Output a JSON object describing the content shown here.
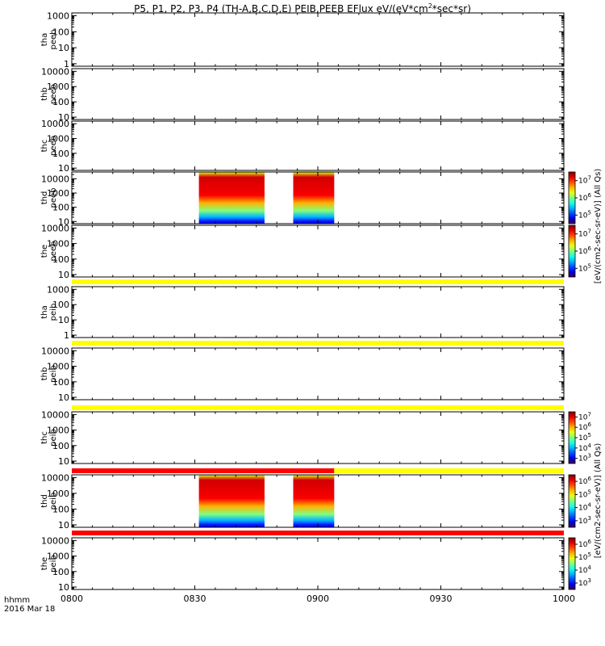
{
  "header": {
    "title_pre": "P5, P1, P2, P3, P4 (TH-A,B,C,D,E) PEIB,PEEB EFlux eV/(eV*cm",
    "title_sup": "2",
    "title_post": "*sec*sr)"
  },
  "footer": {
    "time_label": "hhmm",
    "date_label": "2016 Mar 18"
  },
  "colorbar_units": {
    "peeb": "[eV/(cm2-sec-sr-eV)] (All Qs)",
    "peib": "[eV/(cm2-sec-sr-eV)] (All Qs)"
  },
  "colors": {
    "yellow_bar": "#ffff00",
    "red_bar": "#ff0000"
  },
  "chart_data": {
    "type": "heatmap",
    "x_axis": {
      "range": [
        "08:00",
        "10:00"
      ],
      "tick_labels": [
        "0800",
        "0830",
        "0900",
        "0930",
        "1000"
      ]
    },
    "panels": [
      {
        "id": "tha-peeb",
        "ylabel": [
          "tha",
          "peeb"
        ],
        "ylim": [
          0.7,
          1500
        ],
        "yticks": [
          "1",
          "10",
          "100",
          "1000"
        ],
        "log": true,
        "data_intervals": []
      },
      {
        "id": "thb-peeb",
        "ylabel": [
          "thb",
          "peeb"
        ],
        "ylim": [
          7,
          15000
        ],
        "yticks": [
          "10",
          "100",
          "1000",
          "10000"
        ],
        "log": true,
        "data_intervals": []
      },
      {
        "id": "thc-peeb",
        "ylabel": [
          "thc",
          "peeb"
        ],
        "ylim": [
          7,
          15000
        ],
        "yticks": [
          "10",
          "100",
          "1000",
          "10000"
        ],
        "log": true,
        "data_intervals": []
      },
      {
        "id": "thd-peeb",
        "ylabel": [
          "thd",
          "peeb"
        ],
        "ylim": [
          7,
          30000
        ],
        "yticks": [
          "10",
          "100",
          "1000",
          "10000"
        ],
        "log": true,
        "data_intervals": [
          {
            "start": "08:31",
            "end": "08:47"
          },
          {
            "start": "08:54",
            "end": "09:04"
          }
        ],
        "colorbar": {
          "labels": [
            "10^7",
            "10^6",
            "10^5"
          ],
          "exponents": [
            7,
            6,
            5
          ],
          "range_exponent": [
            4.5,
            7.5
          ]
        }
      },
      {
        "id": "the-peeb",
        "ylabel": [
          "the",
          "peeb"
        ],
        "ylim": [
          7,
          15000
        ],
        "yticks": [
          "10",
          "100",
          "1000",
          "10000"
        ],
        "log": true,
        "data_intervals": [],
        "colorbar": {
          "labels": [
            "10^7",
            "10^6",
            "10^5"
          ],
          "exponents": [
            7,
            6,
            5
          ],
          "range_exponent": [
            4.5,
            7.5
          ]
        }
      },
      {
        "id": "tha-peib",
        "ylabel": [
          "tha",
          "peib"
        ],
        "ylim": [
          0.7,
          1500
        ],
        "yticks": [
          "1",
          "10",
          "100",
          "1000"
        ],
        "log": true,
        "data_intervals": []
      },
      {
        "id": "thb-peib",
        "ylabel": [
          "thb",
          "peib"
        ],
        "ylim": [
          7,
          15000
        ],
        "yticks": [
          "10",
          "100",
          "1000",
          "10000"
        ],
        "log": true,
        "data_intervals": []
      },
      {
        "id": "thc-peib",
        "ylabel": [
          "thc",
          "peib"
        ],
        "ylim": [
          7,
          15000
        ],
        "yticks": [
          "10",
          "100",
          "1000",
          "10000"
        ],
        "log": true,
        "data_intervals": [],
        "colorbar": {
          "labels": [
            "10^7",
            "10^6",
            "10^5",
            "10^4",
            "10^3"
          ],
          "exponents": [
            7,
            6,
            5,
            4,
            3
          ],
          "range_exponent": [
            2.5,
            7.5
          ]
        }
      },
      {
        "id": "thd-peib",
        "ylabel": [
          "thd",
          "peib"
        ],
        "ylim": [
          7,
          15000
        ],
        "yticks": [
          "10",
          "100",
          "1000",
          "10000"
        ],
        "log": true,
        "data_intervals": [
          {
            "start": "08:31",
            "end": "08:47"
          },
          {
            "start": "08:54",
            "end": "09:04"
          }
        ],
        "colorbar": {
          "labels": [
            "10^6",
            "10^5",
            "10^4",
            "10^3"
          ],
          "exponents": [
            6,
            5,
            4,
            3
          ],
          "range_exponent": [
            2.5,
            6.5
          ]
        }
      },
      {
        "id": "the-peib",
        "ylabel": [
          "the",
          "peib"
        ],
        "ylim": [
          7,
          15000
        ],
        "yticks": [
          "10",
          "100",
          "1000",
          "10000"
        ],
        "log": true,
        "data_intervals": [],
        "colorbar": {
          "labels": [
            "10^6",
            "10^5",
            "10^4",
            "10^3"
          ],
          "exponents": [
            6,
            5,
            4,
            3
          ],
          "range_exponent": [
            2.5,
            6.5
          ]
        }
      }
    ],
    "status_bars": [
      {
        "after_panel": "the-peeb",
        "segments": [
          {
            "start": "08:00",
            "end": "10:00",
            "color": "yellow"
          }
        ]
      },
      {
        "after_panel": "tha-peib",
        "segments": [
          {
            "start": "08:00",
            "end": "10:00",
            "color": "yellow"
          }
        ]
      },
      {
        "after_panel": "thb-peib",
        "segments": [
          {
            "start": "08:00",
            "end": "10:00",
            "color": "yellow"
          }
        ]
      },
      {
        "after_panel": "thc-peib",
        "segments": [
          {
            "start": "08:00",
            "end": "09:04",
            "color": "red"
          },
          {
            "start": "09:04",
            "end": "10:00",
            "color": "yellow"
          }
        ]
      },
      {
        "after_panel": "thd-peib",
        "segments": [
          {
            "start": "08:00",
            "end": "10:00",
            "color": "red"
          }
        ]
      }
    ]
  }
}
